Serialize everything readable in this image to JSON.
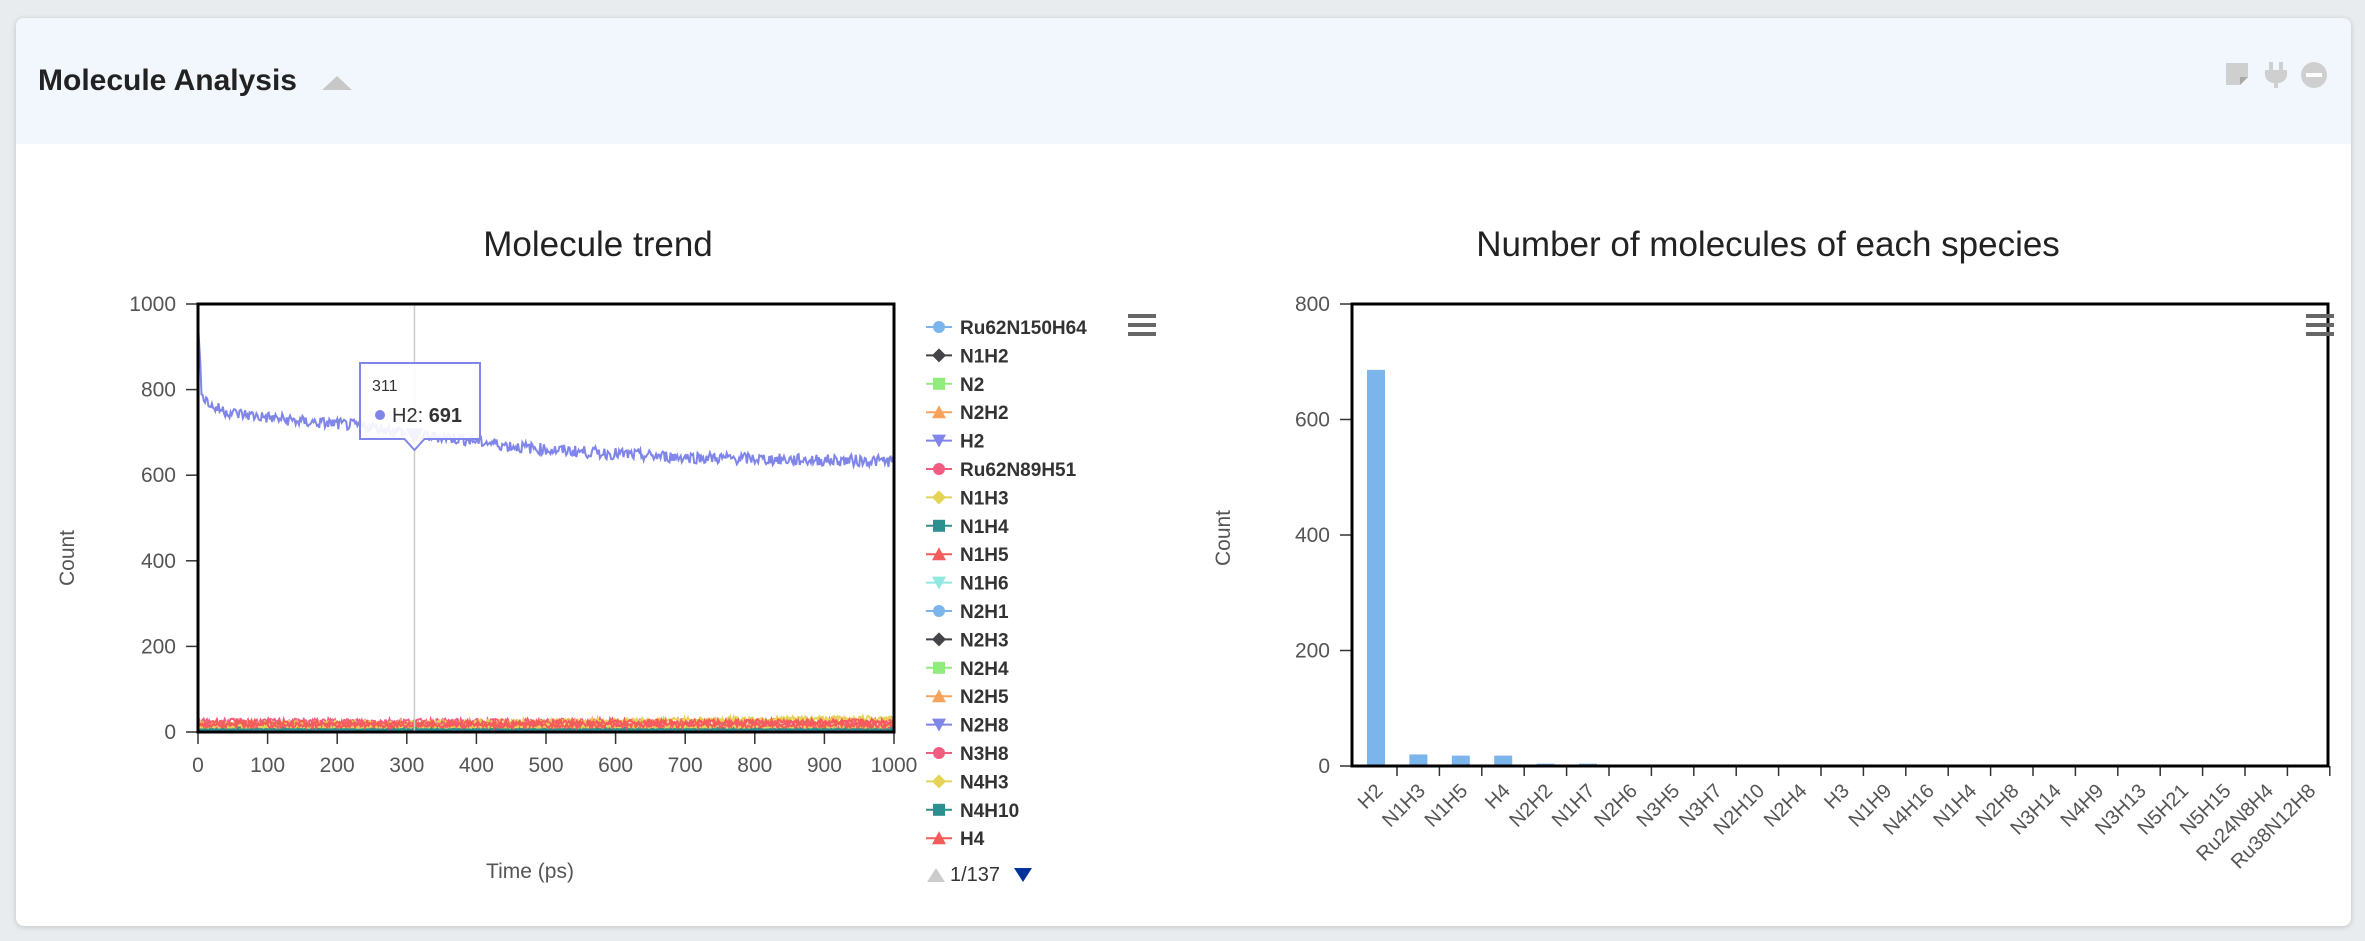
{
  "panel": {
    "title": "Molecule Analysis",
    "collapse_icon": "triangle-up-icon",
    "tools": [
      "sticky-note-icon",
      "plug-icon",
      "minus-circle-icon"
    ]
  },
  "chart_data": [
    {
      "type": "line",
      "title": "Molecule trend",
      "xlabel": "Time (ps)",
      "ylabel": "Count",
      "xlim": [
        0,
        1000
      ],
      "ylim": [
        0,
        1000
      ],
      "xticks": [
        0,
        100,
        200,
        300,
        400,
        500,
        600,
        700,
        800,
        900,
        1000
      ],
      "yticks": [
        0,
        200,
        400,
        600,
        800,
        1000
      ],
      "grid": false,
      "legend_position": "right",
      "series": [
        {
          "name": "Ru62N150H64",
          "color": "#7cb5ec",
          "marker": "circle",
          "x": [
            0,
            1000
          ],
          "values": [
            2,
            2
          ]
        },
        {
          "name": "N1H2",
          "color": "#434348",
          "marker": "diamond",
          "x": [
            0,
            1000
          ],
          "values": [
            4,
            4
          ]
        },
        {
          "name": "N2",
          "color": "#90ed7d",
          "marker": "square",
          "x": [
            0,
            1000
          ],
          "values": [
            6,
            6
          ]
        },
        {
          "name": "N2H2",
          "color": "#f7a35c",
          "marker": "triangle",
          "x": [
            0,
            1000
          ],
          "values": [
            8,
            8
          ]
        },
        {
          "name": "H2",
          "color": "#8085e9",
          "marker": "triangle-down",
          "x": [
            0,
            5,
            10,
            20,
            50,
            100,
            150,
            200,
            250,
            300,
            311,
            350,
            400,
            450,
            500,
            550,
            600,
            650,
            700,
            750,
            800,
            850,
            900,
            950,
            1000
          ],
          "values": [
            950,
            800,
            780,
            760,
            745,
            735,
            725,
            720,
            712,
            700,
            691,
            690,
            680,
            668,
            660,
            655,
            650,
            645,
            642,
            640,
            638,
            636,
            635,
            634,
            633
          ]
        },
        {
          "name": "Ru62N89H51",
          "color": "#f15c80",
          "marker": "circle",
          "x": [
            0,
            1000
          ],
          "values": [
            25,
            25
          ]
        },
        {
          "name": "N1H3",
          "color": "#e4d354",
          "marker": "diamond",
          "x": [
            0,
            200,
            400,
            600,
            800,
            1000
          ],
          "values": [
            18,
            20,
            22,
            26,
            30,
            32
          ]
        },
        {
          "name": "N1H4",
          "color": "#2b908f",
          "marker": "square",
          "x": [
            0,
            1000
          ],
          "values": [
            10,
            10
          ]
        },
        {
          "name": "N1H5",
          "color": "#f45b5b",
          "marker": "triangle",
          "x": [
            0,
            200,
            400,
            600,
            800,
            1000
          ],
          "values": [
            22,
            20,
            20,
            22,
            24,
            24
          ]
        },
        {
          "name": "N1H6",
          "color": "#91e8e1",
          "marker": "triangle-down",
          "x": [
            0,
            1000
          ],
          "values": [
            3,
            3
          ]
        },
        {
          "name": "N2H1",
          "color": "#7cb5ec",
          "marker": "circle",
          "x": [
            0,
            1000
          ],
          "values": [
            1,
            1
          ]
        },
        {
          "name": "N2H3",
          "color": "#434348",
          "marker": "diamond",
          "x": [
            0,
            1000
          ],
          "values": [
            2,
            2
          ]
        },
        {
          "name": "N2H4",
          "color": "#90ed7d",
          "marker": "square",
          "x": [
            0,
            1000
          ],
          "values": [
            3,
            3
          ]
        },
        {
          "name": "N2H5",
          "color": "#f7a35c",
          "marker": "triangle",
          "x": [
            0,
            1000
          ],
          "values": [
            5,
            5
          ]
        },
        {
          "name": "N2H8",
          "color": "#8085e9",
          "marker": "triangle-down",
          "x": [
            0,
            1000
          ],
          "values": [
            4,
            4
          ]
        },
        {
          "name": "N3H8",
          "color": "#f15c80",
          "marker": "circle",
          "x": [
            0,
            1000
          ],
          "values": [
            14,
            14
          ]
        },
        {
          "name": "N4H3",
          "color": "#e4d354",
          "marker": "diamond",
          "x": [
            0,
            1000
          ],
          "values": [
            12,
            12
          ]
        },
        {
          "name": "N4H10",
          "color": "#2b908f",
          "marker": "square",
          "x": [
            0,
            1000
          ],
          "values": [
            6,
            6
          ]
        },
        {
          "name": "H4",
          "color": "#f45b5b",
          "marker": "triangle",
          "x": [
            0,
            1000
          ],
          "values": [
            16,
            16
          ]
        }
      ],
      "tooltip": {
        "x": 311,
        "series": "H2",
        "value": 691,
        "x_label": "311",
        "series_label": "H2: ",
        "value_label": "691"
      },
      "legend_pager": {
        "prev_icon": "triangle-up-icon",
        "next_icon": "triangle-down-icon",
        "text": "1/137"
      },
      "menu_icon": "hamburger-menu-icon"
    },
    {
      "type": "bar",
      "title": "Number of molecules of each species",
      "xlabel": "",
      "ylabel": "Count",
      "ylim": [
        0,
        800
      ],
      "yticks": [
        0,
        200,
        400,
        600,
        800
      ],
      "grid": false,
      "color": "#7cb5ec",
      "categories": [
        "H2",
        "N1H3",
        "N1H5",
        "H4",
        "N2H2",
        "N1H7",
        "N2H6",
        "N3H5",
        "N3H7",
        "N2H10",
        "N2H4",
        "H3",
        "N1H9",
        "N4H16",
        "N1H4",
        "N2H8",
        "N3H14",
        "N4H9",
        "N3H13",
        "N5H21",
        "N5H15",
        "Ru24N8H4",
        "Ru38N12H8"
      ],
      "values": [
        686,
        20,
        18,
        18,
        4,
        4,
        2,
        1,
        1,
        1,
        1,
        1,
        1,
        1,
        1,
        1,
        1,
        1,
        1,
        1,
        1,
        1,
        1
      ],
      "menu_icon": "hamburger-menu-icon"
    }
  ]
}
